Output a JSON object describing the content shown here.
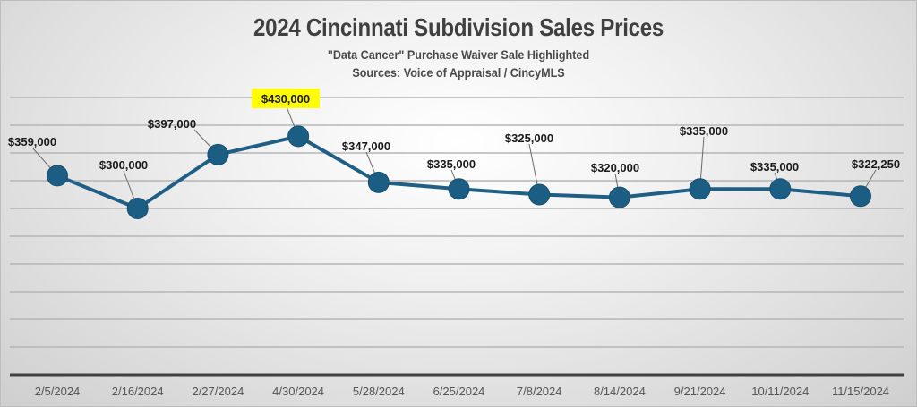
{
  "chart_data": {
    "type": "line",
    "title": "2024 Cincinnati Subdivision Sales Prices",
    "subtitle": "\"Data Cancer\" Purchase Waiver Sale Highlighted",
    "source": "Sources: Voice of Appraisal / CincyMLS",
    "xlabel": "",
    "ylabel": "",
    "ylim": [
      0,
      500000
    ],
    "ygrid_step": 50000,
    "grid": true,
    "legend": "none",
    "categories": [
      "2/5/2024",
      "2/16/2024",
      "2/27/2024",
      "4/30/2024",
      "5/28/2024",
      "6/25/2024",
      "7/8/2024",
      "8/14/2024",
      "9/21/2024",
      "10/11/2024",
      "11/15/2024"
    ],
    "series": [
      {
        "name": "Sales Price",
        "values": [
          359000,
          300000,
          397000,
          430000,
          347000,
          335000,
          325000,
          320000,
          335000,
          335000,
          322250
        ],
        "labels": [
          "$359,000",
          "$300,000",
          "$397,000",
          "$430,000",
          "$347,000",
          "$335,000",
          "$325,000",
          "$320,000",
          "$335,000",
          "$335,000",
          "$322,250"
        ],
        "highlight_index": 3
      }
    ],
    "colors": {
      "line": "#1f5f86",
      "marker": "#1c5e83",
      "highlight": "#ffff00",
      "grid": "#b5b5b5",
      "axis": "#404040"
    }
  }
}
